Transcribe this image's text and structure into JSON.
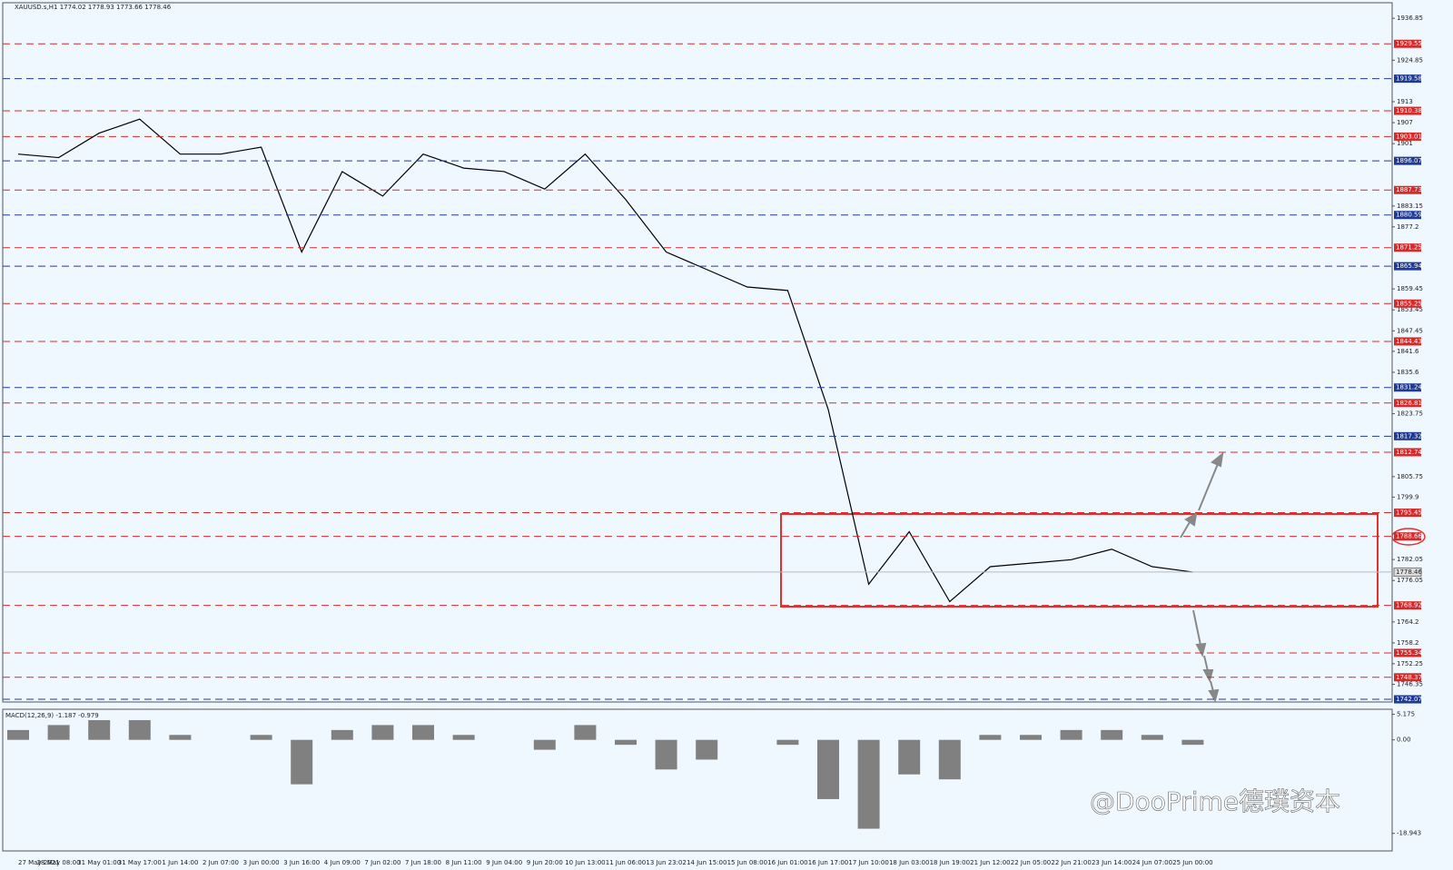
{
  "chart_data": [
    {
      "type": "line",
      "title": "XAUUSD.s,H1  1774.02 1778.93 1773.66 1778.46",
      "categories": [
        "27 May 2021",
        "28 May 08:00",
        "31 May 01:00",
        "31 May 17:00",
        "1 Jun 14:00",
        "2 Jun 07:00",
        "3 Jun 00:00",
        "3 Jun 16:00",
        "4 Jun 09:00",
        "7 Jun 02:00",
        "7 Jun 18:00",
        "8 Jun 11:00",
        "9 Jun 04:00",
        "9 Jun 20:00",
        "10 Jun 13:00",
        "11 Jun 06:00",
        "13 Jun 23:02",
        "14 Jun 15:00",
        "15 Jun 08:00",
        "16 Jun 01:00",
        "16 Jun 17:00",
        "17 Jun 10:00",
        "18 Jun 03:00",
        "18 Jun 19:00",
        "21 Jun 12:00",
        "22 Jun 05:00",
        "22 Jun 21:00",
        "23 Jun 14:00",
        "24 Jun 07:00",
        "25 Jun 00:00"
      ],
      "values": [
        1898,
        1897,
        1904,
        1908,
        1898,
        1898,
        1900,
        1870,
        1893,
        1886,
        1898,
        1894,
        1893,
        1888,
        1898,
        1885,
        1870,
        1865,
        1860,
        1859,
        1825,
        1775,
        1790,
        1770,
        1780,
        1781,
        1782,
        1785,
        1780,
        1778.46
      ],
      "color": "#000000",
      "ylim": [
        1741.3,
        1941.3
      ],
      "yticks": [
        1936.85,
        1924.85,
        1913.0,
        1907.0,
        1901.0,
        1883.15,
        1877.2,
        1859.45,
        1853.45,
        1847.45,
        1841.6,
        1835.6,
        1823.75,
        1805.75,
        1799.9,
        1782.05,
        1776.05,
        1764.2,
        1758.2,
        1752.25,
        1746.35
      ],
      "levels": [
        {
          "value": 1929.55,
          "color": "#d42a2a"
        },
        {
          "value": 1919.58,
          "color": "#1f3a93"
        },
        {
          "value": 1910.38,
          "color": "#d42a2a"
        },
        {
          "value": 1903.01,
          "color": "#d42a2a"
        },
        {
          "value": 1896.07,
          "color": "#1f3a93"
        },
        {
          "value": 1887.73,
          "color": "#d42a2a"
        },
        {
          "value": 1880.59,
          "color": "#1f3a93"
        },
        {
          "value": 1871.25,
          "color": "#d42a2a"
        },
        {
          "value": 1865.94,
          "color": "#1f3a93"
        },
        {
          "value": 1855.25,
          "color": "#d42a2a"
        },
        {
          "value": 1844.43,
          "color": "#d42a2a"
        },
        {
          "value": 1831.24,
          "color": "#1f3a93"
        },
        {
          "value": 1826.81,
          "color": "#d42a2a"
        },
        {
          "value": 1817.32,
          "color": "#1f3a93"
        },
        {
          "value": 1812.74,
          "color": "#d42a2a"
        },
        {
          "value": 1795.45,
          "color": "#d42a2a"
        },
        {
          "value": 1788.66,
          "color": "#d42a2a"
        },
        {
          "value": 1768.92,
          "color": "#d42a2a"
        },
        {
          "value": 1755.34,
          "color": "#d42a2a"
        },
        {
          "value": 1748.37,
          "color": "#d42a2a"
        },
        {
          "value": 1742.07,
          "color": "#1f3a93"
        }
      ],
      "last_price": 1778.46
    },
    {
      "type": "bar",
      "title": "MACD(12,26,9) -1.187 -0.979",
      "values": [
        2,
        3,
        4,
        4,
        1,
        0,
        1,
        -9,
        2,
        3,
        3,
        1,
        0,
        -2,
        3,
        -1,
        -6,
        -4,
        0,
        -1,
        -12,
        -18,
        -7,
        -8,
        1,
        1,
        2,
        2,
        1,
        -1
      ],
      "color": "#808080",
      "ylim": [
        -22.5,
        6.2
      ],
      "yticks": [
        5.175,
        {
          "value": 0,
          "label": "0.00"
        },
        -18.943
      ]
    }
  ],
  "watermark": "@DooPrime德璞资本"
}
